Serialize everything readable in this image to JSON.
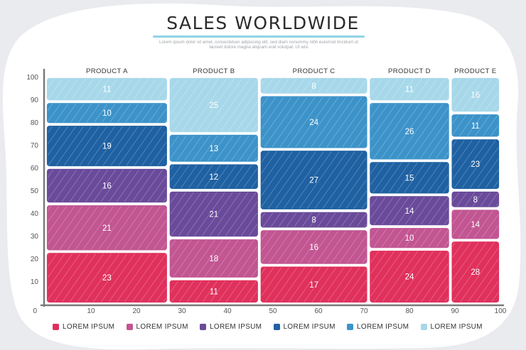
{
  "title": "SALES WORLDWIDE",
  "subtitle": "Lorem ipsum dolor sit amet, consectetuer adipiscing elit, sed diam nonummy nibh euismod tincidunt ut laoreet dolore magna aliquam erat volutpat. Ut wisi",
  "colors": {
    "series": [
      "#e0305c",
      "#c25592",
      "#6a4a9a",
      "#1f61a2",
      "#3c93c9",
      "#a7d8ea"
    ],
    "axis": "#7a7a7a",
    "background": "#ffffff"
  },
  "legend": {
    "items": [
      "LOREM IPSUM",
      "LOREM IPSUM",
      "LOREM IPSUM",
      "LOREM IPSUM",
      "LOREM IPSUM",
      "LOREM IPSUM"
    ]
  },
  "chart_data": {
    "type": "mekko",
    "title": "SALES WORLDWIDE",
    "x_ticks": [
      0,
      10,
      20,
      30,
      40,
      50,
      60,
      70,
      80,
      90,
      100
    ],
    "y_ticks": [
      10,
      20,
      30,
      40,
      50,
      60,
      70,
      80,
      90,
      100
    ],
    "xlim": [
      0,
      100
    ],
    "ylim": [
      0,
      100
    ],
    "grid": false,
    "legend_placement": "bottom",
    "columns": [
      {
        "name": "PRODUCT A",
        "x_start": 0,
        "x_end": 27,
        "segments": [
          23,
          21,
          16,
          19,
          10,
          11
        ]
      },
      {
        "name": "PRODUCT B",
        "x_start": 27,
        "x_end": 47,
        "segments": [
          11,
          18,
          21,
          12,
          13,
          25
        ]
      },
      {
        "name": "PRODUCT C",
        "x_start": 47,
        "x_end": 71,
        "segments": [
          17,
          16,
          8,
          27,
          24,
          8
        ]
      },
      {
        "name": "PRODUCT D",
        "x_start": 71,
        "x_end": 89,
        "segments": [
          24,
          10,
          14,
          15,
          26,
          11
        ]
      },
      {
        "name": "PRODUCT E",
        "x_start": 89,
        "x_end": 100,
        "segments": [
          28,
          14,
          8,
          23,
          11,
          16
        ]
      }
    ]
  }
}
